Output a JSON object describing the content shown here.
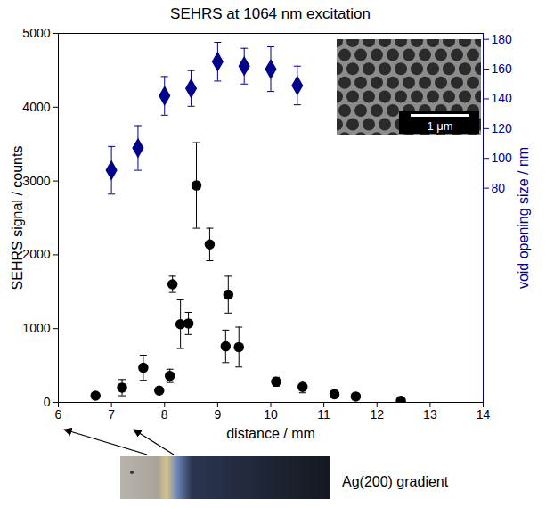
{
  "chart_data": {
    "type": "scatter",
    "title": "SEHRS at 1064 nm excitation",
    "x_label": "distance / mm",
    "y_label": "SEHRS signal / counts",
    "y2_label": "void opening size / nm",
    "xlim": [
      6,
      14
    ],
    "xticks": [
      6,
      7,
      8,
      9,
      10,
      11,
      12,
      13,
      14
    ],
    "ylim": [
      0,
      5000
    ],
    "yticks": [
      0,
      1000,
      2000,
      3000,
      4000,
      5000
    ],
    "y2lim": [
      -64,
      184
    ],
    "y2ticks": [
      80,
      100,
      120,
      140,
      160,
      180
    ],
    "grid": false,
    "series": [
      {
        "color": "#000000",
        "marker": "circle",
        "x": [
          6.7,
          7.2,
          7.6,
          7.9,
          8.1,
          8.15,
          8.3,
          8.45,
          8.6,
          8.85,
          9.15,
          9.2,
          9.4,
          10.1,
          10.6,
          11.2,
          11.6,
          12.45
        ],
        "values": [
          90,
          200,
          470,
          160,
          360,
          1600,
          1060,
          1070,
          2940,
          2140,
          760,
          1460,
          750,
          280,
          210,
          110,
          80,
          20
        ],
        "errors": [
          30,
          110,
          170,
          30,
          90,
          110,
          330,
          150,
          580,
          220,
          220,
          250,
          270,
          60,
          80,
          50,
          40,
          20
        ]
      },
      {
        "color": "#00008b",
        "marker": "diamond",
        "axis": "y2",
        "x": [
          7,
          7.5,
          8,
          8.5,
          9,
          9.5,
          10,
          10.5
        ],
        "values": [
          92,
          107,
          142,
          147,
          165,
          162,
          160,
          149
        ],
        "errors": [
          16,
          15,
          13,
          12,
          13,
          12,
          15,
          13
        ]
      }
    ],
    "annotations": [
      "1 μm",
      "Ag(200) gradient"
    ]
  }
}
